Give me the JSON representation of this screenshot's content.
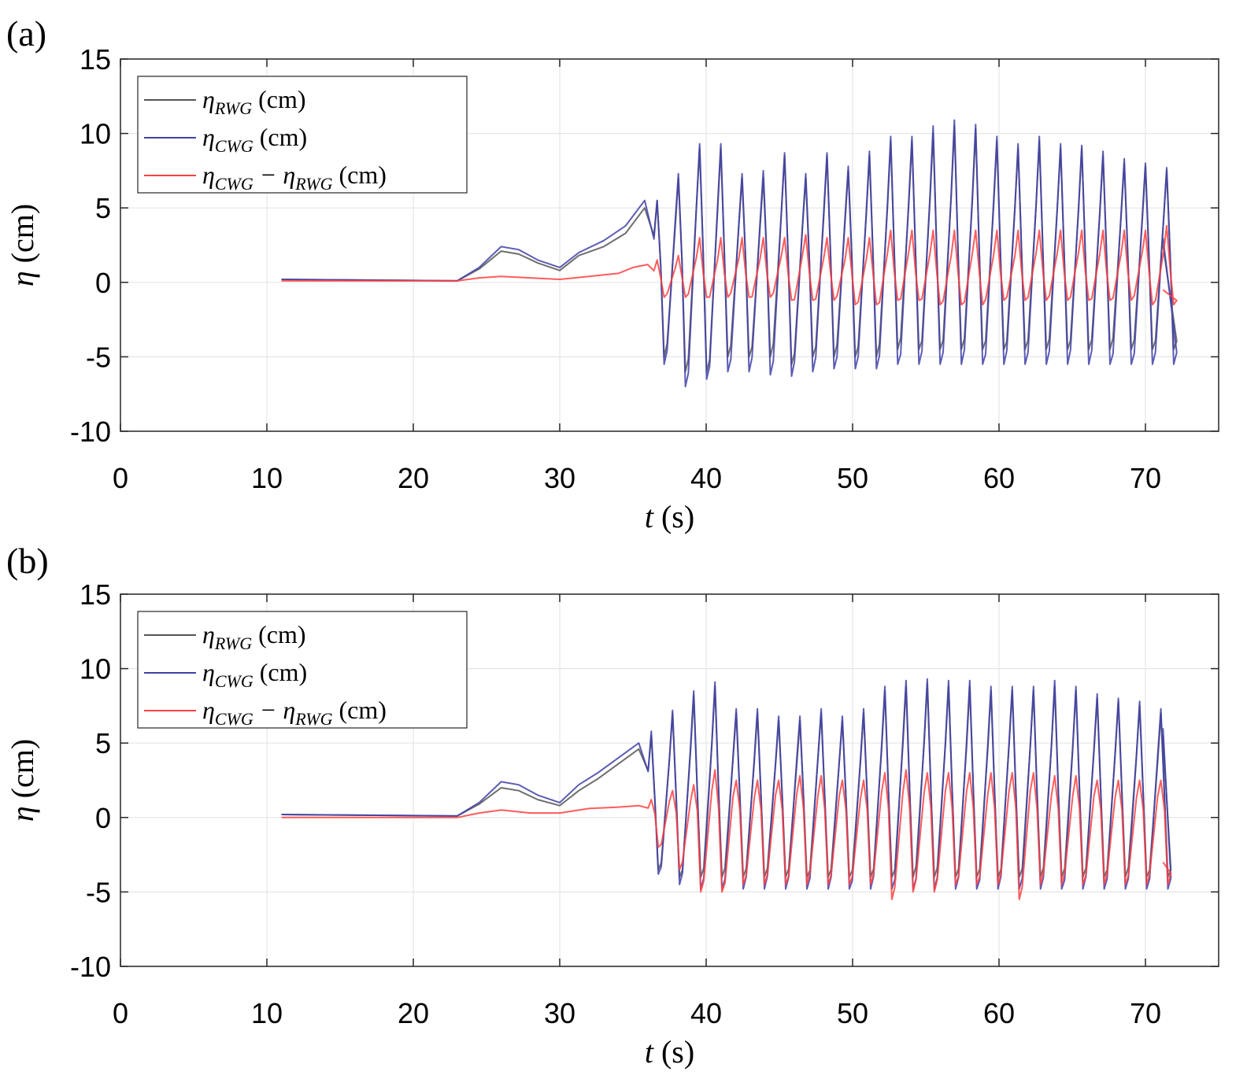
{
  "chart_data": [
    {
      "type": "line",
      "panel_label": "(a)",
      "xlabel": {
        "var": "t",
        "unit": "(s)"
      },
      "ylabel": {
        "var": "η",
        "unit": "(cm)"
      },
      "xlim": [
        0,
        75
      ],
      "ylim": [
        -10,
        15
      ],
      "xticks": [
        "0",
        "10",
        "20",
        "30",
        "40",
        "50",
        "60",
        "70"
      ],
      "yticks": [
        "-10",
        "-5",
        "0",
        "5",
        "10",
        "15"
      ],
      "grid": true,
      "legend_position": "top-left",
      "legend": [
        {
          "prefix": "η",
          "sub": "RWG",
          "mid": "",
          "sub2": "",
          "unit": " (cm)",
          "color": "#555555"
        },
        {
          "prefix": "η",
          "sub": "CWG",
          "mid": "",
          "sub2": "",
          "unit": " (cm)",
          "color": "#4040a8"
        },
        {
          "prefix": "η",
          "sub": "CWG",
          "mid": " − η",
          "sub2": "RWG",
          "unit": " (cm)",
          "color": "#ff4040"
        }
      ],
      "series": [
        {
          "name": "ηRWG (cm)",
          "color": "#555555",
          "segments": [
            [
              11,
              0.2
            ],
            [
              23,
              0.1
            ],
            [
              24.5,
              0.9
            ],
            [
              26,
              2.1
            ],
            [
              27.2,
              1.9
            ],
            [
              28.5,
              1.3
            ],
            [
              30,
              0.8
            ],
            [
              31.3,
              1.8
            ],
            [
              33,
              2.4
            ],
            [
              34.5,
              3.3
            ],
            [
              35.8,
              5.0
            ]
          ],
          "oscillation": {
            "start": 36,
            "end": 71.2,
            "period": 1.45,
            "peaks": [
              5.5,
              7.0,
              9.0,
              9.0,
              7.0,
              7.0,
              8.5,
              7.0,
              8.5,
              7.5,
              8.5,
              9.5,
              9.5,
              10.0,
              10.5,
              10.3,
              9.5,
              9.0,
              9.5,
              9.0,
              9.0,
              8.5,
              8.0,
              7.8,
              7.5
            ],
            "troughs": [
              -5.0,
              -6.0,
              -6.0,
              -5.0,
              -5.0,
              -5.0,
              -5.5,
              -5.0,
              -5.0,
              -5.0,
              -5.0,
              -4.5,
              -4.5,
              -4.5,
              -4.5,
              -4.5,
              -4.5,
              -4.5,
              -4.5,
              -4.5,
              -4.5,
              -4.5,
              -4.5,
              -4.5,
              -4.5
            ],
            "end_value": 2.5
          }
        },
        {
          "name": "ηCWG (cm)",
          "color": "#4040a8",
          "segments": [
            [
              11,
              0.2
            ],
            [
              23,
              0.1
            ],
            [
              24.5,
              1.0
            ],
            [
              26,
              2.4
            ],
            [
              27.2,
              2.2
            ],
            [
              28.5,
              1.5
            ],
            [
              30,
              1.0
            ],
            [
              31.3,
              2.0
            ],
            [
              33,
              2.8
            ],
            [
              34.5,
              3.8
            ],
            [
              35.8,
              5.5
            ]
          ],
          "oscillation": {
            "start": 36,
            "end": 71.2,
            "period": 1.45,
            "peaks": [
              5.5,
              7.3,
              9.3,
              9.3,
              7.3,
              7.5,
              8.7,
              7.3,
              8.7,
              7.8,
              8.8,
              9.8,
              9.8,
              10.5,
              10.9,
              10.6,
              9.8,
              9.3,
              9.8,
              9.3,
              9.2,
              8.8,
              8.3,
              8.0,
              7.7
            ],
            "troughs": [
              -5.5,
              -7.0,
              -6.5,
              -6.0,
              -6.0,
              -6.2,
              -6.3,
              -6.0,
              -5.8,
              -5.8,
              -5.8,
              -5.5,
              -5.5,
              -5.5,
              -5.5,
              -5.5,
              -5.5,
              -5.5,
              -5.5,
              -5.5,
              -5.5,
              -5.5,
              -5.5,
              -5.5,
              -5.5
            ],
            "end_value": 3.0
          }
        },
        {
          "name": "ηCWG − ηRWG (cm)",
          "color": "#ff4040",
          "segments": [
            [
              11,
              0.1
            ],
            [
              23,
              0.1
            ],
            [
              24.5,
              0.3
            ],
            [
              26,
              0.4
            ],
            [
              28,
              0.3
            ],
            [
              30,
              0.2
            ],
            [
              32,
              0.4
            ],
            [
              34,
              0.6
            ],
            [
              35,
              1.0
            ],
            [
              36,
              1.2
            ]
          ],
          "oscillation": {
            "start": 36,
            "end": 71.2,
            "period": 1.45,
            "peaks": [
              1.5,
              1.8,
              3.0,
              3.0,
              3.0,
              3.0,
              3.0,
              3.2,
              3.0,
              3.0,
              3.0,
              3.5,
              3.5,
              3.5,
              3.5,
              3.5,
              3.5,
              3.5,
              3.5,
              3.5,
              3.5,
              3.5,
              3.5,
              3.5,
              3.8
            ],
            "troughs": [
              -1.0,
              -1.0,
              -1.0,
              -1.0,
              -1.0,
              -1.0,
              -1.2,
              -1.2,
              -1.2,
              -1.5,
              -1.5,
              -1.2,
              -1.2,
              -1.5,
              -1.5,
              -1.5,
              -1.2,
              -1.2,
              -1.2,
              -1.2,
              -1.2,
              -1.2,
              -1.2,
              -1.5,
              -1.5
            ],
            "end_value": -0.5
          }
        }
      ]
    },
    {
      "type": "line",
      "panel_label": "(b)",
      "xlabel": {
        "var": "t",
        "unit": "(s)"
      },
      "ylabel": {
        "var": "η",
        "unit": "(cm)"
      },
      "xlim": [
        0,
        75
      ],
      "ylim": [
        -10,
        15
      ],
      "xticks": [
        "0",
        "10",
        "20",
        "30",
        "40",
        "50",
        "60",
        "70"
      ],
      "yticks": [
        "-10",
        "-5",
        "0",
        "5",
        "10",
        "15"
      ],
      "grid": true,
      "legend_position": "top-left",
      "legend": [
        {
          "prefix": "η",
          "sub": "RWG",
          "mid": "",
          "sub2": "",
          "unit": " (cm)",
          "color": "#555555"
        },
        {
          "prefix": "η",
          "sub": "CWG",
          "mid": "",
          "sub2": "",
          "unit": " (cm)",
          "color": "#4040a8"
        },
        {
          "prefix": "η",
          "sub": "CWG",
          "mid": " − η",
          "sub2": "RWG",
          "unit": " (cm)",
          "color": "#ff4040"
        }
      ],
      "series": [
        {
          "name": "ηRWG (cm)",
          "color": "#555555",
          "segments": [
            [
              11,
              0.2
            ],
            [
              23,
              0.1
            ],
            [
              24.5,
              0.9
            ],
            [
              26,
              2.0
            ],
            [
              27.2,
              1.8
            ],
            [
              28.5,
              1.2
            ],
            [
              30,
              0.8
            ],
            [
              31.3,
              1.8
            ],
            [
              32.6,
              2.6
            ],
            [
              34,
              3.6
            ],
            [
              35.4,
              4.6
            ]
          ],
          "oscillation": {
            "start": 35.6,
            "end": 71.2,
            "period": 1.45,
            "peaks": [
              5.5,
              7.0,
              8.2,
              8.8,
              7.0,
              7.0,
              6.5,
              6.5,
              7.0,
              6.5,
              7.0,
              8.5,
              8.8,
              9.0,
              8.8,
              8.8,
              8.5,
              8.5,
              8.5,
              8.8,
              8.5,
              8.0,
              7.8,
              7.5,
              7.0
            ],
            "troughs": [
              -3.5,
              -4.0,
              -4.0,
              -4.0,
              -4.0,
              -4.0,
              -4.0,
              -4.0,
              -4.0,
              -4.0,
              -4.0,
              -4.0,
              -4.0,
              -4.0,
              -4.0,
              -4.0,
              -4.0,
              -4.0,
              -4.0,
              -4.0,
              -4.0,
              -4.0,
              -4.0,
              -4.0,
              -4.0
            ],
            "end_value": 5.5
          }
        },
        {
          "name": "ηCWG (cm)",
          "color": "#4040a8",
          "segments": [
            [
              11,
              0.2
            ],
            [
              23,
              0.1
            ],
            [
              24.5,
              1.0
            ],
            [
              26,
              2.4
            ],
            [
              27.2,
              2.2
            ],
            [
              28.5,
              1.5
            ],
            [
              30,
              1.0
            ],
            [
              31.3,
              2.2
            ],
            [
              32.6,
              3.0
            ],
            [
              34,
              4.0
            ],
            [
              35.4,
              5.0
            ]
          ],
          "oscillation": {
            "start": 35.6,
            "end": 71.2,
            "period": 1.45,
            "peaks": [
              5.8,
              7.2,
              8.5,
              9.1,
              7.3,
              7.3,
              6.8,
              6.8,
              7.3,
              6.8,
              7.3,
              8.8,
              9.2,
              9.3,
              9.2,
              9.2,
              8.8,
              8.8,
              8.8,
              9.2,
              8.8,
              8.3,
              8.0,
              7.8,
              7.3
            ],
            "troughs": [
              -3.8,
              -4.5,
              -4.8,
              -4.8,
              -4.8,
              -4.8,
              -4.8,
              -4.8,
              -4.8,
              -4.8,
              -4.8,
              -4.8,
              -4.8,
              -4.8,
              -4.8,
              -4.8,
              -4.8,
              -4.8,
              -4.8,
              -4.8,
              -4.8,
              -4.8,
              -4.8,
              -4.8,
              -4.8
            ],
            "end_value": 6.0
          }
        },
        {
          "name": "ηCWG − ηRWG (cm)",
          "color": "#ff4040",
          "segments": [
            [
              11,
              0.0
            ],
            [
              23,
              0.0
            ],
            [
              24.5,
              0.3
            ],
            [
              26,
              0.5
            ],
            [
              28,
              0.3
            ],
            [
              30,
              0.3
            ],
            [
              32,
              0.6
            ],
            [
              34,
              0.7
            ],
            [
              35.4,
              0.8
            ]
          ],
          "oscillation": {
            "start": 35.6,
            "end": 71.2,
            "period": 1.45,
            "peaks": [
              1.2,
              1.8,
              2.2,
              3.2,
              2.5,
              2.5,
              2.5,
              2.8,
              2.8,
              2.5,
              2.5,
              3.0,
              3.2,
              3.0,
              3.0,
              3.0,
              3.0,
              3.0,
              3.0,
              2.8,
              2.8,
              2.5,
              2.5,
              2.5,
              2.5
            ],
            "troughs": [
              -2.0,
              -3.5,
              -5.0,
              -5.0,
              -4.5,
              -4.5,
              -4.5,
              -4.5,
              -4.5,
              -4.5,
              -4.5,
              -5.5,
              -5.0,
              -5.0,
              -4.5,
              -4.5,
              -4.5,
              -5.5,
              -4.5,
              -4.5,
              -4.5,
              -4.5,
              -4.5,
              -4.5,
              -4.5
            ],
            "end_value": -3.0
          }
        }
      ]
    }
  ]
}
